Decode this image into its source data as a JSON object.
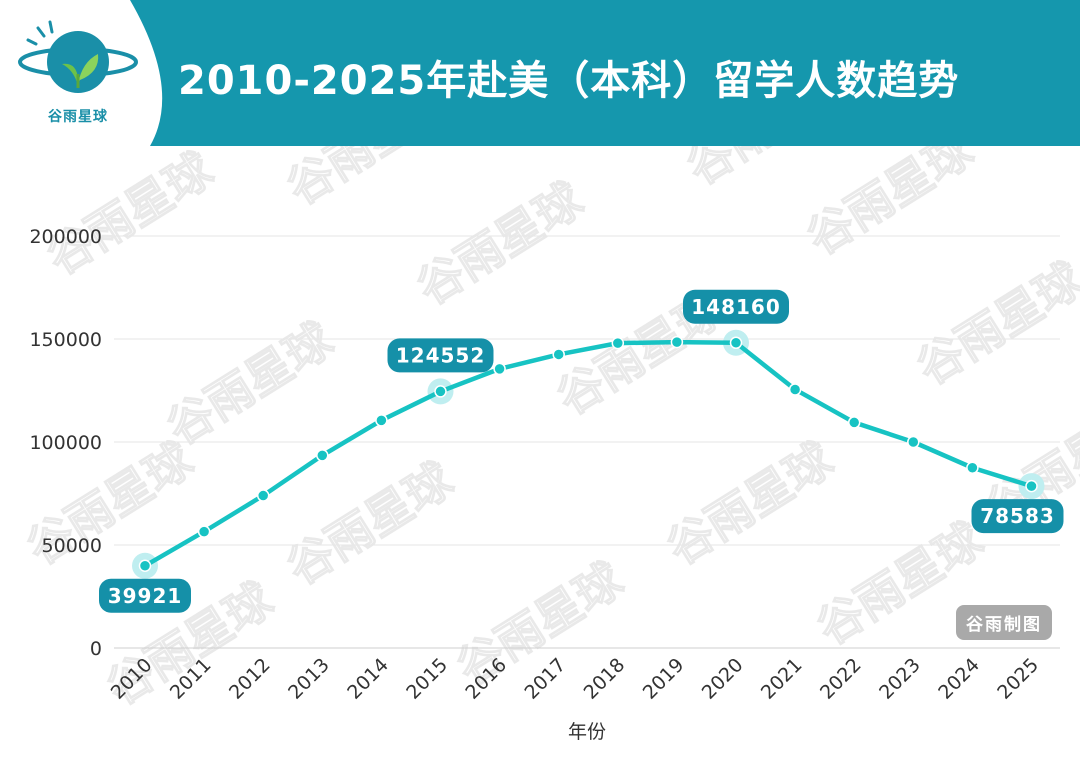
{
  "header": {
    "title": "2010-2025年赴美（本科）留学人数趋势",
    "logo_text": "谷雨星球",
    "color": "#1597ad"
  },
  "watermark": "谷雨星球",
  "credit_badge": "谷雨制图",
  "chart_data": {
    "type": "line",
    "title": "2010-2025年赴美（本科）留学人数趋势",
    "xlabel": "年份",
    "ylabel": "",
    "ylim": [
      0,
      200000
    ],
    "yticks": [
      "0",
      "50000",
      "100000",
      "150000",
      "200000"
    ],
    "grid": true,
    "categories": [
      "2010",
      "2011",
      "2012",
      "2013",
      "2014",
      "2015",
      "2016",
      "2017",
      "2018",
      "2019",
      "2020",
      "2021",
      "2022",
      "2023",
      "2024",
      "2025"
    ],
    "series": [
      {
        "name": "",
        "color": "#17c3c3",
        "values": [
          39921,
          56500,
          74000,
          93500,
          110500,
          124552,
          135500,
          142500,
          148000,
          148500,
          148160,
          125500,
          109500,
          100000,
          87500,
          78583
        ]
      }
    ],
    "annotations": [
      {
        "index": 0,
        "label": "39921",
        "position": "below"
      },
      {
        "index": 5,
        "label": "124552",
        "position": "above"
      },
      {
        "index": 10,
        "label": "148160",
        "position": "above"
      },
      {
        "index": 15,
        "label": "78583",
        "position": "below"
      }
    ],
    "label_color": "#1590a8"
  }
}
